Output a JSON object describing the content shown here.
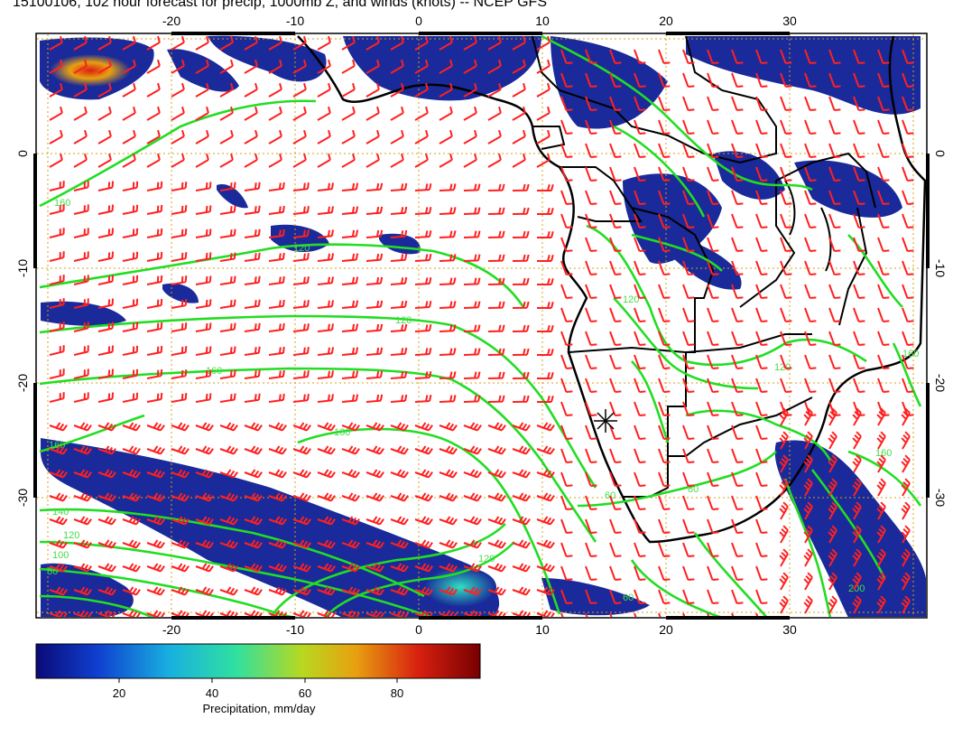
{
  "title": "15100106, 102 hour forecast for precip, 1000mb Z, and winds (knots) -- NCEP GFS",
  "map": {
    "lon_ticks_bottom": [
      "-20",
      "-10",
      "0",
      "10",
      "20",
      "30"
    ],
    "lon_ticks_top": [
      "-20",
      "-10",
      "0",
      "10",
      "20",
      "30"
    ],
    "lat_ticks_left": [
      "0",
      "-10",
      "-20",
      "-30"
    ],
    "lat_ticks_right": [
      "0",
      "-10",
      "-20",
      "-30"
    ],
    "contour_labels": [
      "160",
      "120",
      "120",
      "160",
      "160",
      "160",
      "140",
      "120",
      "100",
      "80",
      "60",
      "80",
      "120",
      "120",
      "160",
      "160",
      "200",
      "120",
      "60"
    ],
    "colors": {
      "land_outline": "#000000",
      "contour": "#22dd22",
      "wind_barb": "#ff0000",
      "grid": "#d4a017",
      "precip_low": "#1a2a9a",
      "precip_high": "#d22000"
    }
  },
  "colorbar": {
    "ticks": [
      "20",
      "40",
      "60",
      "80"
    ],
    "label": "Precipitation, mm/day",
    "stops": [
      "#0a0a78",
      "#1040d0",
      "#18b0e0",
      "#30e0a0",
      "#b8d820",
      "#e8a010",
      "#d82010",
      "#780000"
    ]
  }
}
